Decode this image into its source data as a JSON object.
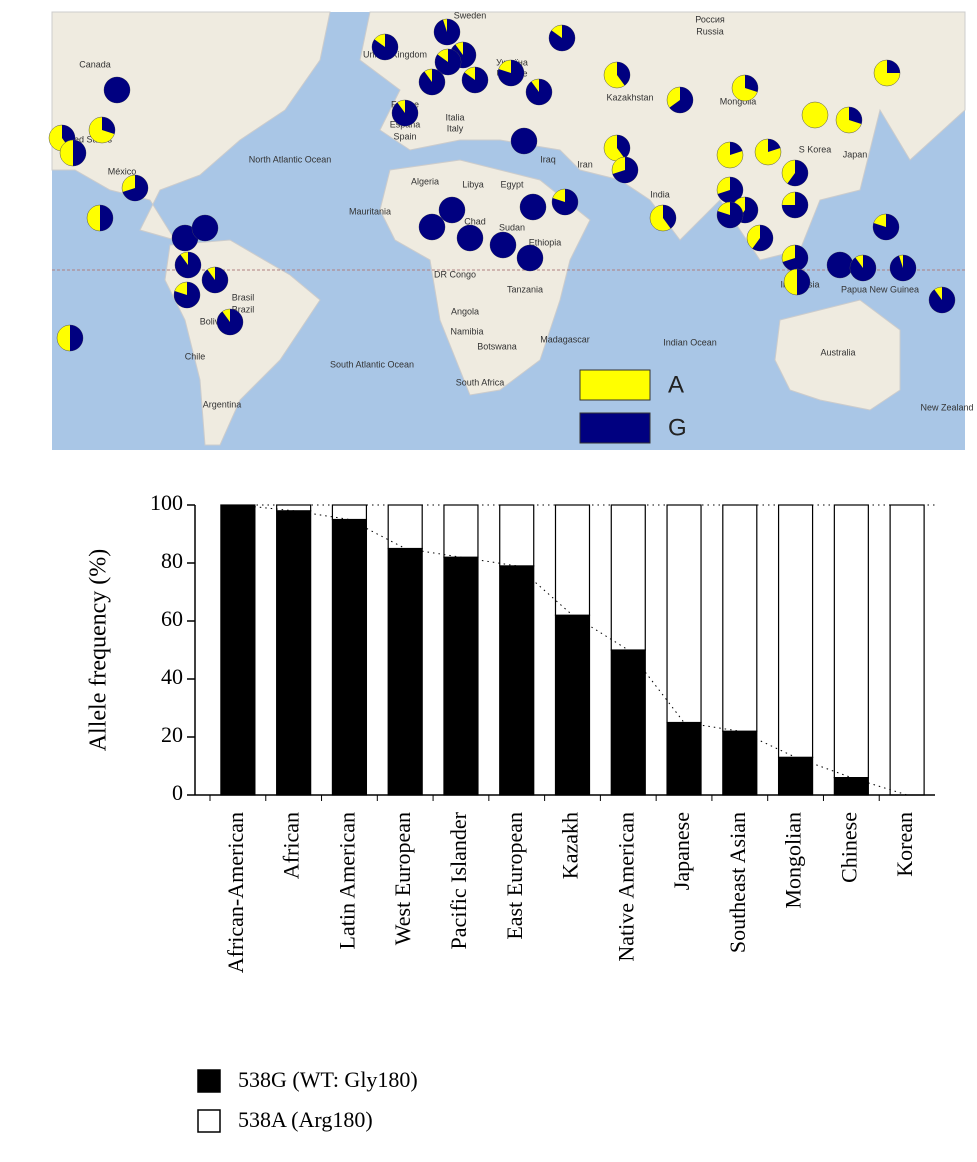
{
  "chart_data": [
    {
      "type": "map",
      "labels": [
        "Canada",
        "Россия",
        "Russia",
        "Sweden",
        "United Kingdom",
        "France",
        "España",
        "Spain",
        "Italia",
        "Italy",
        "Україна",
        "Ukraine",
        "Kazakhstan",
        "Mongolia",
        "North Atlantic Ocean",
        "United States",
        "México",
        "Algeria",
        "Libya",
        "Egypt",
        "Mauritania",
        "Chad",
        "Sudan",
        "Ethiopia",
        "DR Congo",
        "Tanzania",
        "Angola",
        "Namibia",
        "Botswana",
        "South Africa",
        "Madagascar",
        "Indian Ocean",
        "India",
        "Iran",
        "Iraq",
        "S Korea",
        "Japan",
        "Indonesia",
        "Papua New Guinea",
        "Australia",
        "New Zealand",
        "South Atlantic Ocean",
        "Brasil",
        "Brazil",
        "Chile",
        "Argentina",
        "Bolivia"
      ],
      "series": [
        {
          "name": "A",
          "color": "#ffff00"
        },
        {
          "name": "G",
          "color": "#000080"
        }
      ],
      "pies": [
        85,
        95,
        90,
        85,
        90,
        85,
        80,
        90,
        85,
        40,
        65,
        30,
        25,
        100,
        30,
        40,
        50,
        70,
        50,
        90,
        100,
        40,
        70,
        40,
        20,
        20,
        0,
        30,
        60,
        75,
        70,
        60,
        80,
        60,
        70,
        50,
        80,
        100,
        90,
        95,
        90,
        100,
        100,
        100,
        100,
        100,
        80,
        100,
        100,
        100,
        90,
        90,
        80,
        90,
        50
      ]
    },
    {
      "type": "bar",
      "stacked": true,
      "y_label": "Allele frequency (%)",
      "categories": [
        "African-American",
        "African",
        "Latin American",
        "West European",
        "Pacific Islander",
        "East European",
        "Kazakh",
        "Native American",
        "Japanese",
        "Southeast Asian",
        "Mongolian",
        "Chinese",
        "Korean"
      ],
      "series": [
        {
          "name": "538G (WT: Gly180)",
          "color": "#000000",
          "values": [
            100,
            98,
            95,
            85,
            82,
            79,
            62,
            50,
            25,
            22,
            13,
            6,
            0
          ]
        },
        {
          "name": "538A (Arg180)",
          "color": "#ffffff",
          "values": [
            0,
            2,
            5,
            15,
            18,
            21,
            38,
            50,
            75,
            78,
            87,
            94,
            100
          ]
        }
      ],
      "ylim": [
        0,
        100
      ],
      "yticks": [
        0,
        20,
        40,
        60,
        80,
        100
      ]
    }
  ]
}
